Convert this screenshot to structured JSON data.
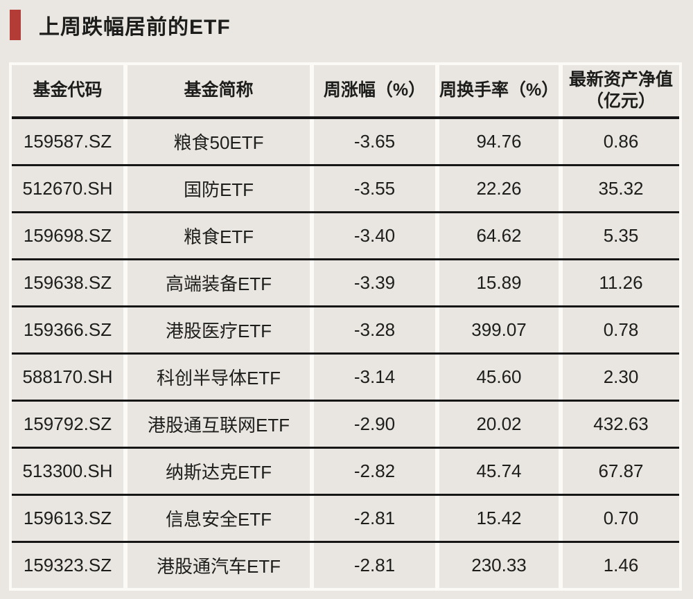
{
  "page": {
    "background": "#eae7e2"
  },
  "section": {
    "title": "上周跌幅居前的ETF",
    "accent_color": "#b43c36"
  },
  "table": {
    "display_headers": [
      "基金代码",
      "基金简称",
      "周涨幅（%）",
      "周换手率（%）",
      "最新资产净值\n（亿元）"
    ],
    "colors": {
      "cell_background": "#e9e6e1",
      "frame_white": "#fbfaf7",
      "rule_black": "#161616",
      "text": "#1d1d1b"
    }
  },
  "chart_data": {
    "type": "table",
    "title": "上周跌幅居前的ETF",
    "columns": [
      "基金代码",
      "基金简称",
      "周涨幅（%）",
      "周换手率（%）",
      "最新资产净值（亿元）"
    ],
    "rows": [
      [
        "159587.SZ",
        "粮食50ETF",
        "-3.65",
        "94.76",
        "0.86"
      ],
      [
        "512670.SH",
        "国防ETF",
        "-3.55",
        "22.26",
        "35.32"
      ],
      [
        "159698.SZ",
        "粮食ETF",
        "-3.40",
        "64.62",
        "5.35"
      ],
      [
        "159638.SZ",
        "高端装备ETF",
        "-3.39",
        "15.89",
        "11.26"
      ],
      [
        "159366.SZ",
        "港股医疗ETF",
        "-3.28",
        "399.07",
        "0.78"
      ],
      [
        "588170.SH",
        "科创半导体ETF",
        "-3.14",
        "45.60",
        "2.30"
      ],
      [
        "159792.SZ",
        "港股通互联网ETF",
        "-2.90",
        "20.02",
        "432.63"
      ],
      [
        "513300.SH",
        "纳斯达克ETF",
        "-2.82",
        "45.74",
        "67.87"
      ],
      [
        "159613.SZ",
        "信息安全ETF",
        "-2.81",
        "15.42",
        "0.70"
      ],
      [
        "159323.SZ",
        "港股通汽车ETF",
        "-2.81",
        "230.33",
        "1.46"
      ]
    ]
  }
}
